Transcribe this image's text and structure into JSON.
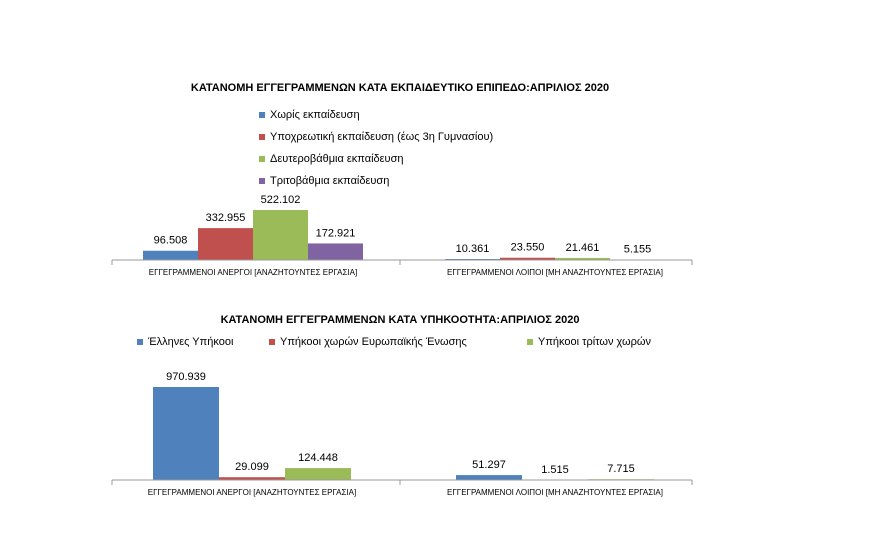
{
  "chart_data": [
    {
      "type": "bar",
      "title": "ΚΑΤΑΝΟΜΗ ΕΓΓΕΓΡΑΜΜΕΝΩΝ ΚΑΤΑ ΕΚΠΑΙΔΕΥΤΙΚΟ ΕΠΙΠΕΔΟ:ΑΠΡΙΛΙΟΣ 2020",
      "categories": [
        "ΕΓΓΕΓΡΑΜΜΕΝΟΙ ΑΝΕΡΓΟΙ [ΑΝΑΖΗΤΟΥΝΤΕΣ ΕΡΓΑΣΙΑ]",
        "ΕΓΓΕΓΡΑΜΜΕΝΟΙ ΛΟΙΠΟΙ [ΜΗ ΑΝΑΖΗΤΟΥΝΤΕΣ ΕΡΓΑΣΙΑ]"
      ],
      "series": [
        {
          "name": "Χωρίς εκπαίδευση",
          "color": "#4f81bd",
          "values": [
            96508,
            10361
          ],
          "value_labels": [
            "96.508",
            "10.361"
          ]
        },
        {
          "name": "Υποχρεωτική εκπαίδευση (έως 3η Γυμνασίου)",
          "color": "#c0504d",
          "values": [
            332955,
            23550
          ],
          "value_labels": [
            "332.955",
            "23.550"
          ]
        },
        {
          "name": "Δευτεροβάθμια εκπαίδευση",
          "color": "#9bbb59",
          "values": [
            522102,
            21461
          ],
          "value_labels": [
            "522.102",
            "21.461"
          ]
        },
        {
          "name": "Τριτοβάθμια εκπαίδευση",
          "color": "#8064a2",
          "values": [
            172921,
            5155
          ],
          "value_labels": [
            "172.921",
            "5.155"
          ]
        }
      ]
    },
    {
      "type": "bar",
      "title": "ΚΑΤΑΝΟΜΗ ΕΓΓΕΓΡΑΜΜΕΝΩΝ ΚΑΤΑ ΥΠΗΚΟΟΤΗΤΑ:ΑΠΡΙΛΙΟΣ 2020",
      "categories": [
        "ΕΓΓΕΓΡΑΜΜΕΝΟΙ ΑΝΕΡΓΟΙ [ΑΝΑΖΗΤΟΥΝΤΕΣ ΕΡΓΑΣΙΑ]",
        "ΕΓΓΕΓΡΑΜΜΕΝΟΙ ΛΟΙΠΟΙ [ΜΗ ΑΝΑΖΗΤΟΥΝΤΕΣ ΕΡΓΑΣΙΑ]"
      ],
      "series": [
        {
          "name": "Έλληνες Υπήκοοι",
          "color": "#4f81bd",
          "values": [
            970939,
            51297
          ],
          "value_labels": [
            "970.939",
            "51.297"
          ]
        },
        {
          "name": "Υπήκοοι χωρών Ευρωπαϊκής Ένωσης",
          "color": "#c0504d",
          "values": [
            29099,
            1515
          ],
          "value_labels": [
            "29.099",
            "1.515"
          ]
        },
        {
          "name": "Υπήκοοι τρίτων χωρών",
          "color": "#9bbb59",
          "values": [
            124448,
            7715
          ],
          "value_labels": [
            "124.448",
            "7.715"
          ]
        }
      ]
    }
  ]
}
